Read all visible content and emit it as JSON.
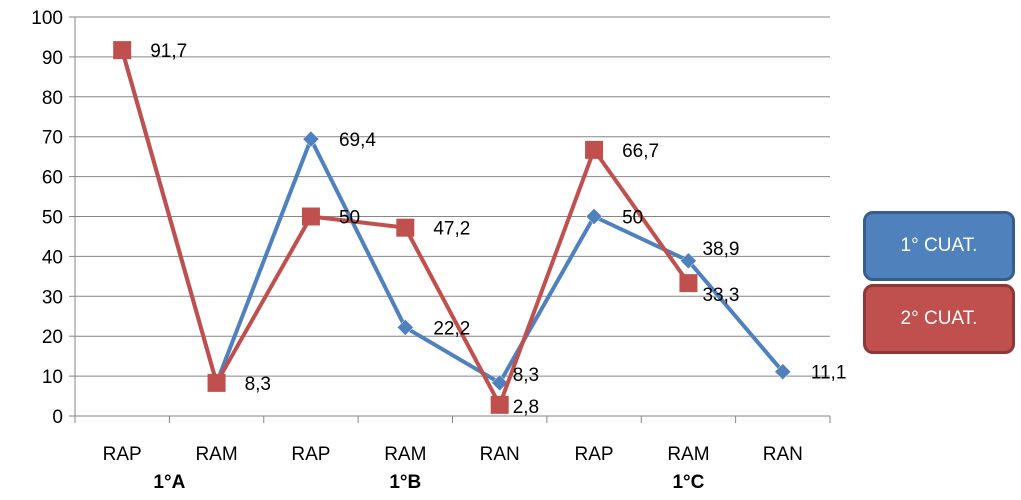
{
  "chart_data": {
    "type": "line",
    "categories": [
      "RAP",
      "RAM",
      "RAP",
      "RAM",
      "RAN",
      "RAP",
      "RAM",
      "RAN"
    ],
    "groups": [
      {
        "label": "1°A",
        "span": [
          0,
          1
        ]
      },
      {
        "label": "1°B",
        "span": [
          2,
          4
        ]
      },
      {
        "label": "1°C",
        "span": [
          5,
          7
        ]
      }
    ],
    "ylim": [
      0,
      100
    ],
    "yticks": [
      0,
      10,
      20,
      30,
      40,
      50,
      60,
      70,
      80,
      90,
      100
    ],
    "grid": true,
    "legend_position": "right",
    "series": [
      {
        "name": "1° CUAT.",
        "color": "#4F81BD",
        "marker": "diamond",
        "values": [
          91.7,
          8.3,
          69.4,
          22.2,
          8.3,
          50,
          38.9,
          11.1
        ],
        "labels": [
          "",
          "",
          "69,4",
          "22,2",
          "8,3",
          "50",
          "38,9",
          "11,1"
        ]
      },
      {
        "name": "2° CUAT.",
        "color": "#C0504D",
        "marker": "square",
        "values": [
          91.7,
          8.3,
          50,
          47.2,
          2.8,
          66.7,
          33.3,
          null
        ],
        "labels": [
          "91,7",
          "8,3",
          "50",
          "47,2",
          "2,8",
          "66,7",
          "33,3",
          ""
        ]
      }
    ]
  }
}
